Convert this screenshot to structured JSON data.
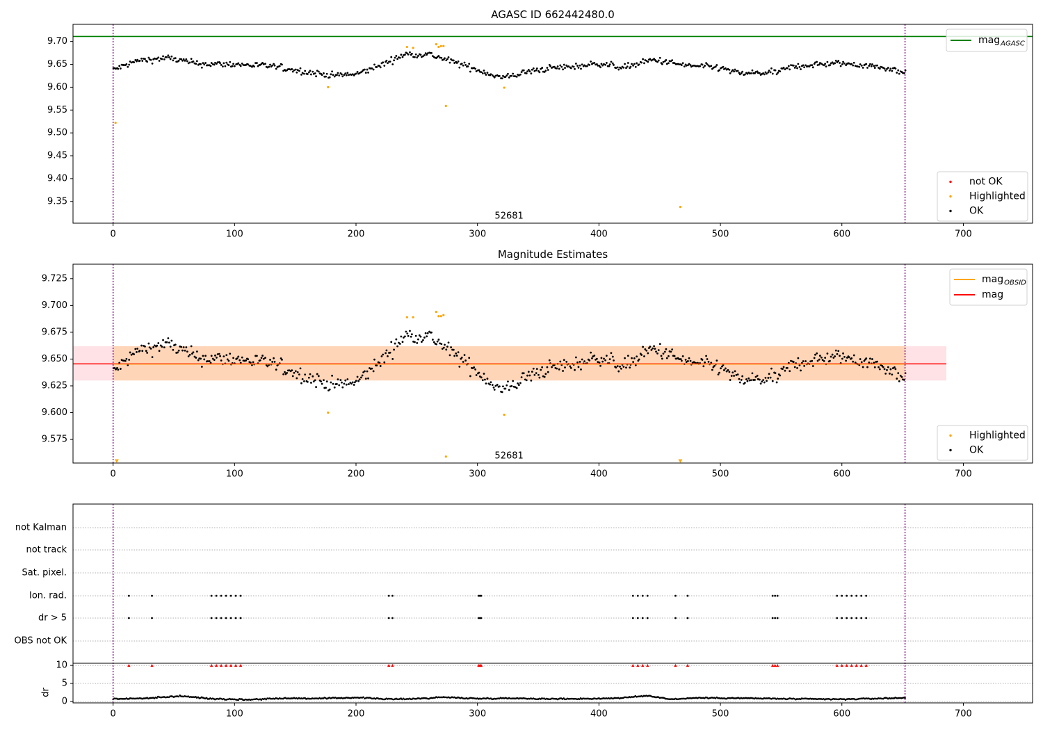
{
  "chart_data": [
    {
      "type": "scatter",
      "title": "AGASC ID 662442480.0",
      "xlabel": "",
      "ylabel": "",
      "xlim": [
        -33,
        757
      ],
      "ylim": [
        9.3025,
        9.7375
      ],
      "xticks": [
        0,
        100,
        200,
        300,
        400,
        500,
        600,
        700
      ],
      "yticks": [
        9.35,
        9.4,
        9.45,
        9.5,
        9.55,
        9.6,
        9.65,
        9.7
      ],
      "xticklabels": [
        "0",
        "100",
        "200",
        "300",
        "400",
        "500",
        "600",
        "700"
      ],
      "yticklabels": [
        "9.35",
        "9.40",
        "9.45",
        "9.50",
        "9.55",
        "9.60",
        "9.65",
        "9.70"
      ],
      "vlines": [
        0,
        652
      ],
      "hline": {
        "name": "mag",
        "sub": "AGASC",
        "y": 9.711,
        "color": "#008000"
      },
      "annotation": {
        "text": "52681",
        "x": 326,
        "y": 9.3175
      },
      "legend_top": [
        {
          "name": "mag",
          "sub": "AGASC",
          "color": "#008000",
          "kind": "line"
        }
      ],
      "legend_bottom": [
        {
          "name": "not OK",
          "color": "#ff0000",
          "kind": "dot"
        },
        {
          "name": "Highlighted",
          "color": "#ffa500",
          "kind": "dot"
        },
        {
          "name": "OK",
          "color": "#000000",
          "kind": "dot"
        }
      ],
      "series": [
        {
          "name": "OK",
          "color": "#000000",
          "x_range": [
            0,
            652
          ],
          "profile": [
            [
              0,
              9.638
            ],
            [
              20,
              9.658
            ],
            [
              45,
              9.664
            ],
            [
              70,
              9.651
            ],
            [
              100,
              9.65
            ],
            [
              130,
              9.646
            ],
            [
              160,
              9.633
            ],
            [
              180,
              9.626
            ],
            [
              200,
              9.628
            ],
            [
              220,
              9.648
            ],
            [
              240,
              9.672
            ],
            [
              260,
              9.672
            ],
            [
              280,
              9.655
            ],
            [
              300,
              9.638
            ],
            [
              320,
              9.62
            ],
            [
              340,
              9.633
            ],
            [
              360,
              9.642
            ],
            [
              380,
              9.645
            ],
            [
              400,
              9.652
            ],
            [
              420,
              9.643
            ],
            [
              445,
              9.66
            ],
            [
              470,
              9.648
            ],
            [
              500,
              9.642
            ],
            [
              515,
              9.63
            ],
            [
              545,
              9.632
            ],
            [
              560,
              9.645
            ],
            [
              580,
              9.65
            ],
            [
              600,
              9.652
            ],
            [
              620,
              9.648
            ],
            [
              640,
              9.64
            ],
            [
              652,
              9.632
            ]
          ],
          "noise": 0.009
        },
        {
          "name": "Highlighted",
          "color": "#ffa500",
          "x": [
            2,
            177,
            242,
            247,
            266,
            268,
            270,
            272,
            274,
            322,
            467
          ],
          "y": [
            9.522,
            9.6,
            9.688,
            9.686,
            9.694,
            9.688,
            9.69,
            9.69,
            9.559,
            9.599,
            9.338
          ]
        }
      ]
    },
    {
      "type": "scatter",
      "title": "Magnitude Estimates",
      "xlabel": "",
      "ylabel": "",
      "xlim": [
        -33,
        757
      ],
      "ylim": [
        9.553,
        9.7385
      ],
      "xticks": [
        0,
        100,
        200,
        300,
        400,
        500,
        600,
        700
      ],
      "yticks": [
        9.575,
        9.6,
        9.625,
        9.65,
        9.675,
        9.7,
        9.725
      ],
      "xticklabels": [
        "0",
        "100",
        "200",
        "300",
        "400",
        "500",
        "600",
        "700"
      ],
      "yticklabels": [
        "9.575",
        "9.600",
        "9.625",
        "9.650",
        "9.675",
        "9.700",
        "9.725"
      ],
      "vlines": [
        0,
        652
      ],
      "hline": {
        "name": "mag",
        "y": 9.6455,
        "color": "#ff0000",
        "x_range": [
          -33,
          686
        ]
      },
      "band_mag": {
        "y0": 9.63,
        "y1": 9.662,
        "x_range": [
          -33,
          686
        ],
        "color": "#ffb6c1"
      },
      "band_obsid": {
        "y0": 9.63,
        "y1": 9.662,
        "x_range": [
          0,
          652
        ],
        "color": "#ffa500"
      },
      "annotation": {
        "text": "52681",
        "x": 326,
        "y": 9.5595
      },
      "legend_top": [
        {
          "name": "mag",
          "sub": "OBSID",
          "color": "#ffa500",
          "kind": "line"
        },
        {
          "name": "mag",
          "color": "#ff0000",
          "kind": "line"
        }
      ],
      "legend_bottom": [
        {
          "name": "Highlighted",
          "color": "#ffa500",
          "kind": "dot"
        },
        {
          "name": "OK",
          "color": "#000000",
          "kind": "dot"
        }
      ],
      "series": [
        {
          "name": "OK",
          "color": "#000000",
          "x_range": [
            0,
            652
          ],
          "profile": [
            [
              0,
              9.638
            ],
            [
              20,
              9.658
            ],
            [
              45,
              9.664
            ],
            [
              70,
              9.651
            ],
            [
              100,
              9.65
            ],
            [
              130,
              9.646
            ],
            [
              160,
              9.633
            ],
            [
              180,
              9.626
            ],
            [
              200,
              9.628
            ],
            [
              220,
              9.648
            ],
            [
              240,
              9.672
            ],
            [
              260,
              9.672
            ],
            [
              280,
              9.655
            ],
            [
              300,
              9.638
            ],
            [
              320,
              9.62
            ],
            [
              340,
              9.633
            ],
            [
              360,
              9.642
            ],
            [
              380,
              9.645
            ],
            [
              400,
              9.652
            ],
            [
              420,
              9.643
            ],
            [
              445,
              9.66
            ],
            [
              470,
              9.648
            ],
            [
              500,
              9.642
            ],
            [
              515,
              9.63
            ],
            [
              545,
              9.632
            ],
            [
              560,
              9.645
            ],
            [
              580,
              9.65
            ],
            [
              600,
              9.652
            ],
            [
              620,
              9.648
            ],
            [
              640,
              9.64
            ],
            [
              652,
              9.632
            ]
          ],
          "noise": 0.009
        },
        {
          "name": "Highlighted",
          "color": "#ffa500",
          "x": [
            177,
            242,
            247,
            266,
            268,
            270,
            272,
            274,
            322
          ],
          "y": [
            9.6,
            9.689,
            9.689,
            9.694,
            9.69,
            9.69,
            9.691,
            9.559,
            9.598
          ]
        },
        {
          "name": "Highlighted (below axis)",
          "color": "#ffa500",
          "marker": "triangle-down",
          "x": [
            3,
            467
          ],
          "y": [
            9.5545,
            9.5545
          ]
        }
      ]
    },
    {
      "type": "scatter",
      "title": "",
      "xlabel": "",
      "ylabel": "",
      "xlim": [
        -33,
        757
      ],
      "xticks": [
        0,
        100,
        200,
        300,
        400,
        500,
        600,
        700
      ],
      "xticklabels": [
        "0",
        "100",
        "200",
        "300",
        "400",
        "500",
        "600",
        "700"
      ],
      "vlines": [
        0,
        652
      ],
      "categories": [
        "not Kalman",
        "not track",
        "Sat. pixel.",
        "Ion. rad.",
        "dr > 5",
        "OBS not OK"
      ],
      "flags": [
        {
          "category": "Ion. rad.",
          "x": [
            13,
            32,
            81,
            85,
            89,
            93,
            97,
            101,
            105,
            227,
            230,
            301,
            302,
            303,
            428,
            432,
            436,
            440,
            463,
            473,
            543,
            545,
            547,
            596,
            600,
            604,
            608,
            612,
            616,
            620
          ]
        },
        {
          "category": "dr > 5",
          "x": [
            13,
            32,
            81,
            85,
            89,
            93,
            97,
            101,
            105,
            227,
            230,
            301,
            302,
            303,
            428,
            432,
            436,
            440,
            463,
            473,
            543,
            545,
            547,
            596,
            600,
            604,
            608,
            612,
            616,
            620
          ]
        }
      ],
      "dr": {
        "ylabel": "dr",
        "ylim": [
          -0.4,
          10.6
        ],
        "yticks": [
          0,
          5,
          10
        ],
        "yticklabels": [
          "0",
          "5",
          "10"
        ],
        "clipped_marker_color": "#ff0000",
        "clipped_x": [
          13,
          32,
          81,
          85,
          89,
          93,
          97,
          101,
          105,
          227,
          230,
          301,
          302,
          303,
          428,
          432,
          436,
          440,
          463,
          473,
          543,
          545,
          547,
          596,
          600,
          604,
          608,
          612,
          616,
          620
        ],
        "clipped_y": 10,
        "baseline_profile": [
          [
            0,
            0.7
          ],
          [
            30,
            0.9
          ],
          [
            55,
            1.5
          ],
          [
            80,
            0.8
          ],
          [
            110,
            0.5
          ],
          [
            140,
            0.9
          ],
          [
            170,
            0.8
          ],
          [
            200,
            1.1
          ],
          [
            230,
            0.6
          ],
          [
            260,
            0.9
          ],
          [
            270,
            1.2
          ],
          [
            300,
            0.8
          ],
          [
            330,
            0.9
          ],
          [
            360,
            0.7
          ],
          [
            400,
            0.8
          ],
          [
            420,
            1.0
          ],
          [
            440,
            1.6
          ],
          [
            460,
            0.6
          ],
          [
            480,
            1.0
          ],
          [
            520,
            0.9
          ],
          [
            560,
            0.7
          ],
          [
            600,
            0.6
          ],
          [
            640,
            0.9
          ],
          [
            652,
            1.0
          ]
        ]
      }
    }
  ]
}
